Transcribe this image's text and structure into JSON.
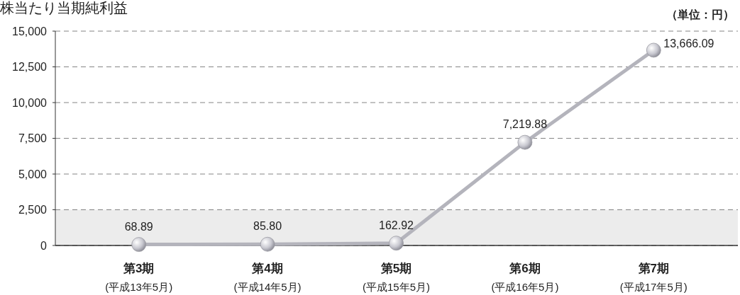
{
  "chart_data": {
    "type": "line",
    "title": "株当たり当期純利益",
    "annotations": [
      "（単位：円）"
    ],
    "categories": [
      "第3期\n(平成13年5月)",
      "第4期\n(平成14年5月)",
      "第5期\n(平成15年5月)",
      "第6期\n(平成16年5月)",
      "第7期\n(平成17年5月)"
    ],
    "series": [
      {
        "color": "#b4b4bc",
        "values": [
          68.89,
          85.8,
          162.92,
          7219.88,
          13666.09
        ]
      }
    ],
    "value_labels": [
      "68.89",
      "85.80",
      "162.92",
      "7,219.88",
      "13,666.09"
    ],
    "ylim": [
      0,
      15000
    ],
    "yticks": [
      0,
      {
        "value": 2500,
        "label": "2,500"
      },
      {
        "value": 5000,
        "label": "5,000"
      },
      {
        "value": 7500,
        "label": "7,500"
      },
      {
        "value": 10000,
        "label": "10,000"
      },
      {
        "value": 12500,
        "label": "12,500"
      },
      {
        "value": 15000,
        "label": "15,000"
      }
    ],
    "bands": [
      {
        "axis": "y",
        "from": 0,
        "to": 2500,
        "color": "#ececec"
      }
    ],
    "grid": "y",
    "marker": "circle",
    "line_style": "solid"
  }
}
